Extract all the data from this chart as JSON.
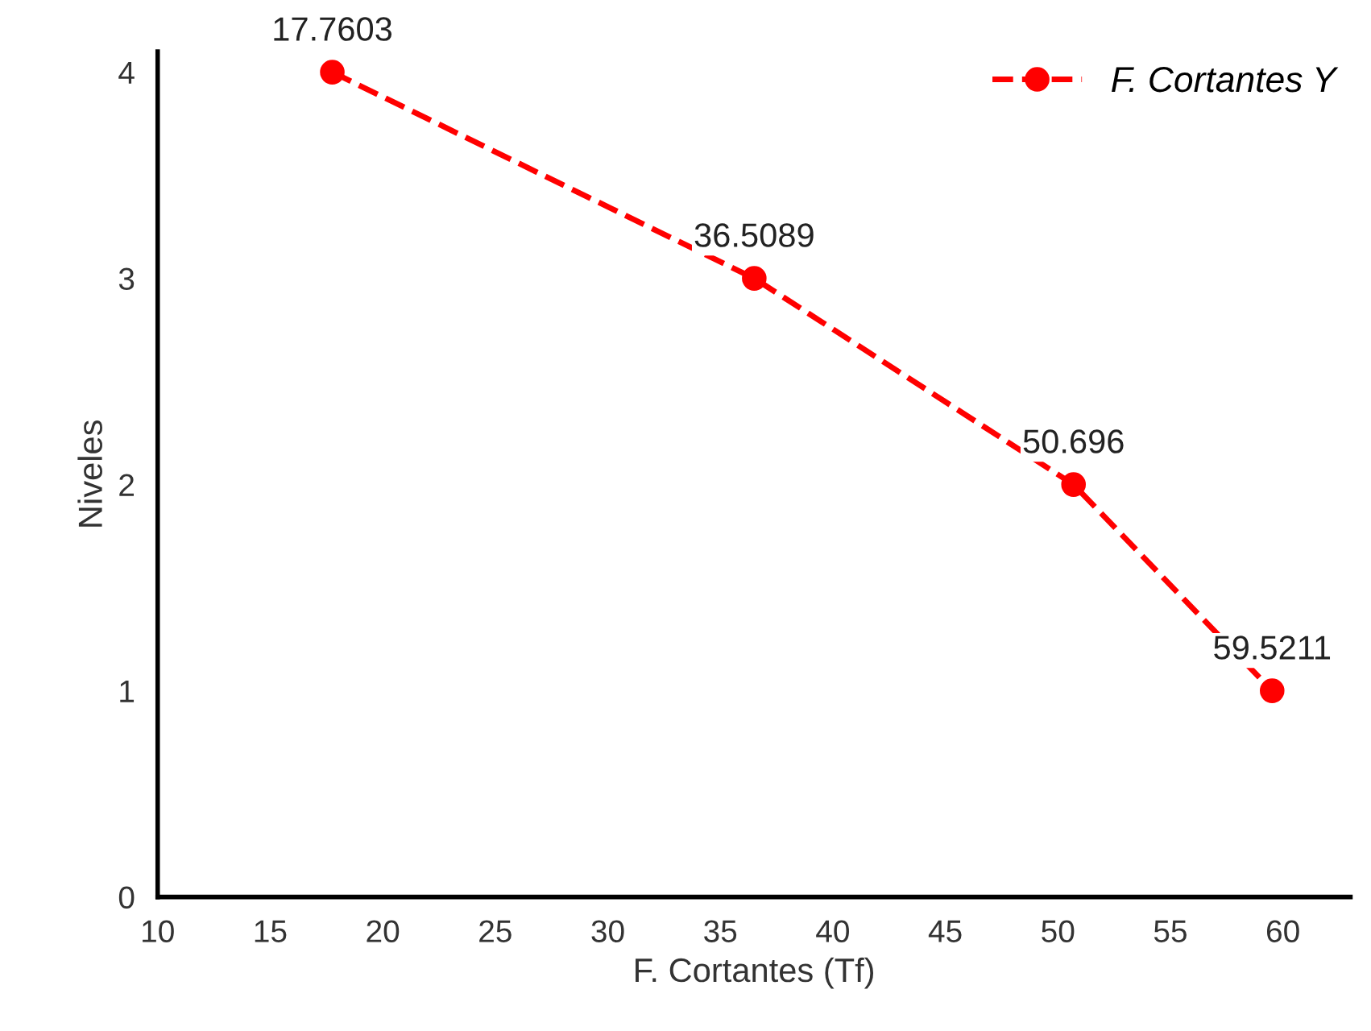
{
  "chart_data": {
    "type": "line",
    "xlabel": "F. Cortantes (Tf)",
    "ylabel": "Niveles",
    "series": [
      {
        "name": "F. Cortantes Y",
        "color": "#ff0000",
        "x": [
          17.7603,
          36.5089,
          50.696,
          59.5211
        ],
        "values": [
          4,
          3,
          2,
          1
        ]
      }
    ],
    "annotations": [
      {
        "text": "17.7603",
        "x": 17.7603,
        "y": 4
      },
      {
        "text": "36.5089",
        "x": 36.5089,
        "y": 3
      },
      {
        "text": "50.696",
        "x": 50.696,
        "y": 2
      },
      {
        "text": "59.5211",
        "x": 59.5211,
        "y": 1
      }
    ],
    "xlim": [
      10,
      63
    ],
    "xticks": [
      10,
      15,
      20,
      25,
      30,
      35,
      40,
      45,
      50,
      55,
      60
    ],
    "ylim": [
      0,
      4.1
    ],
    "yticks": [
      0,
      1,
      2,
      3,
      4
    ],
    "grid": false,
    "legend": "top right",
    "marker": "circle",
    "line_style": "dashed"
  }
}
